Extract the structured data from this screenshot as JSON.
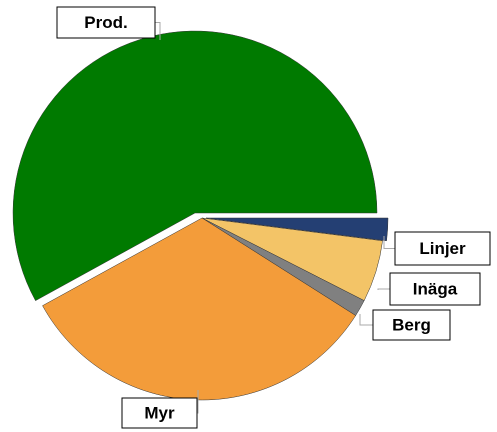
{
  "chart_data": {
    "type": "pie",
    "categories": [
      "Linjer",
      "Inäga",
      "Berg",
      "Myr",
      "Prod."
    ],
    "values": [
      2,
      5.5,
      1.5,
      33,
      58
    ],
    "colors": [
      "#243f73",
      "#f3c467",
      "#808080",
      "#f39c3a",
      "#007a00"
    ]
  }
}
